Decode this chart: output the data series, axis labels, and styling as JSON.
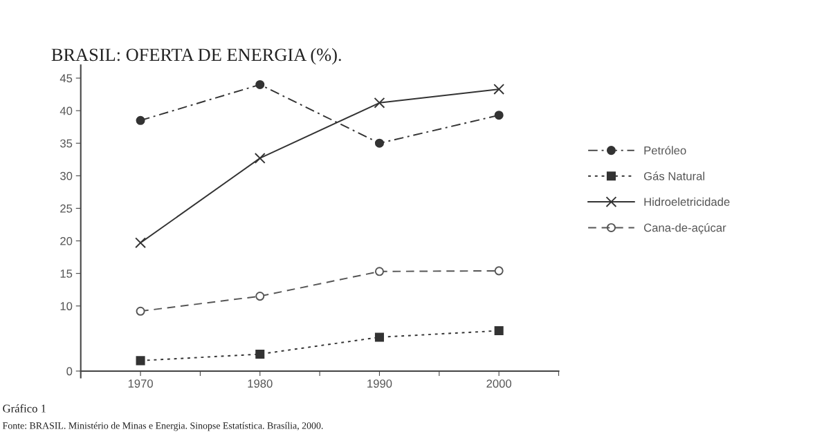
{
  "chart_data": {
    "type": "line",
    "title": "BRASIL: OFERTA DE ENERGIA (%).",
    "x": [
      1970,
      1980,
      1990,
      2000
    ],
    "xlim": [
      1965,
      2005
    ],
    "xticks": [
      1970,
      {
        "value": 1975,
        "label": null
      },
      1980,
      {
        "value": 1985,
        "label": null
      },
      1990,
      {
        "value": 1995,
        "label": null
      },
      2000,
      {
        "value": 2005,
        "label": null
      }
    ],
    "ylim": [
      -1,
      47
    ],
    "yticks": [
      0,
      10,
      15,
      20,
      25,
      30,
      35,
      40,
      45
    ],
    "grid": false,
    "legend": "right",
    "series": [
      {
        "name": "Petróleo",
        "color": "#333333",
        "marker": "circle",
        "line_style": "dashdot",
        "values": [
          38.5,
          44,
          35,
          39.3
        ]
      },
      {
        "name": "Gás Natural",
        "color": "#333333",
        "marker": "square",
        "line_style": "dotted",
        "values": [
          1.6,
          2.6,
          5.2,
          6.2
        ]
      },
      {
        "name": "Hidroeletricidade",
        "color": "#333333",
        "marker": "cross",
        "line_style": "solid",
        "values": [
          19.7,
          32.7,
          41.2,
          43.3
        ]
      },
      {
        "name": "Cana-de-açúcar",
        "color": "#555555",
        "marker": "open circle",
        "line_style": "dashed",
        "values": [
          9.2,
          11.5,
          15.3,
          15.4
        ]
      }
    ],
    "annotations": [
      "Gráfico 1",
      "Fonte: BRASIL. Ministério de Minas e Energia. Sinopse Estatística. Brasília, 2000."
    ]
  }
}
